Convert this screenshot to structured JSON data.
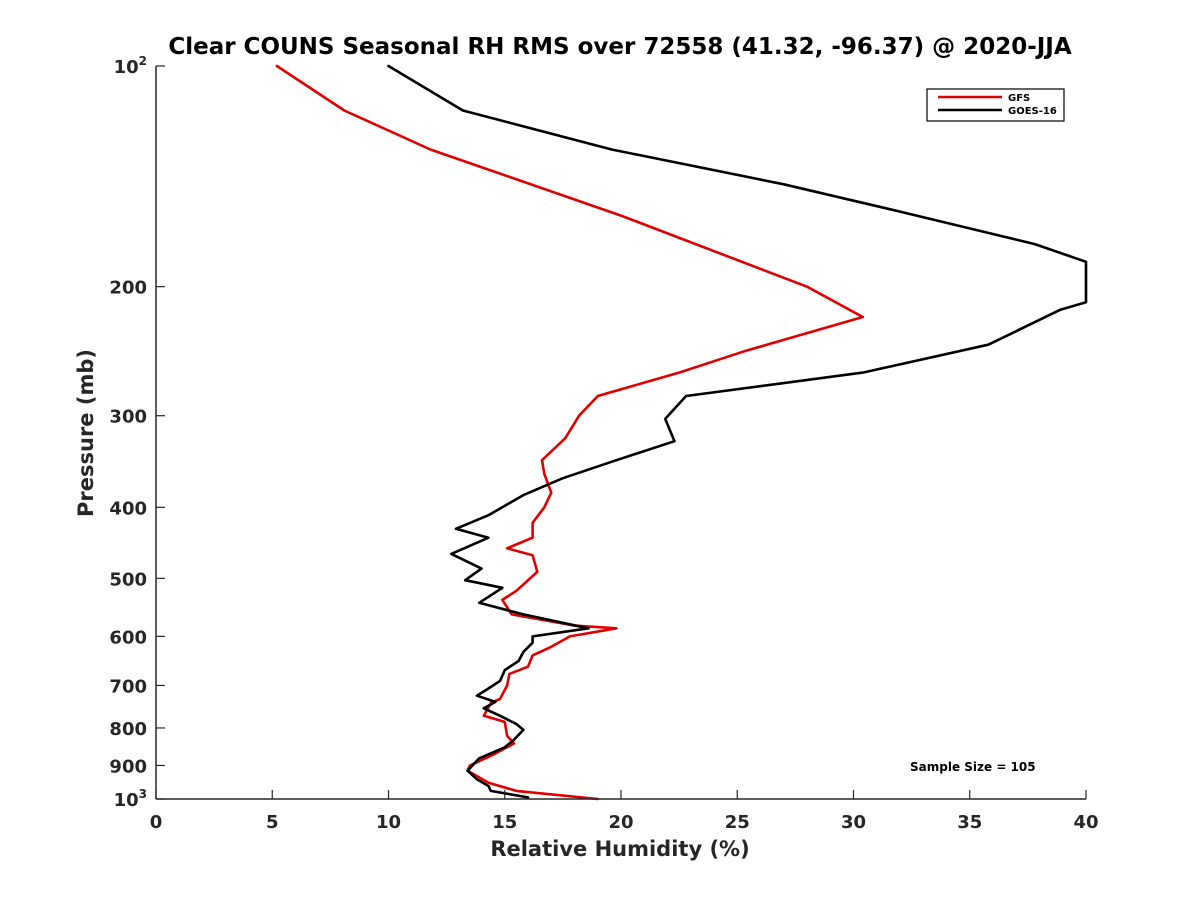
{
  "chart_data": {
    "type": "line",
    "title": "Clear COUNS Seasonal RH RMS over 72558 (41.32, -96.37) @ 2020-JJA",
    "xlabel": "Relative Humidity (%)",
    "ylabel": "Pressure (mb)",
    "xlim": [
      0,
      40
    ],
    "ylim": [
      100,
      1000
    ],
    "y_scale": "log",
    "y_reversed": true,
    "x_ticks": [
      0,
      5,
      10,
      15,
      20,
      25,
      30,
      35,
      40
    ],
    "y_ticks": [
      {
        "value": 100,
        "base": "10",
        "exp": "2"
      },
      {
        "value": 200,
        "label": "200"
      },
      {
        "value": 300,
        "label": "300"
      },
      {
        "value": 400,
        "label": "400"
      },
      {
        "value": 500,
        "label": "500"
      },
      {
        "value": 600,
        "label": "600"
      },
      {
        "value": 700,
        "label": "700"
      },
      {
        "value": 800,
        "label": "800"
      },
      {
        "value": 900,
        "label": "900"
      },
      {
        "value": 1000,
        "base": "10",
        "exp": "3"
      }
    ],
    "legend_position": "top-right",
    "annotation": "Sample Size = 105",
    "series": [
      {
        "name": "GFS",
        "color": "#e00000",
        "points": [
          [
            5.2,
            100
          ],
          [
            8.1,
            115
          ],
          [
            11.8,
            130
          ],
          [
            20,
            160
          ],
          [
            28,
            200
          ],
          [
            30.4,
            220
          ],
          [
            25.3,
            245
          ],
          [
            22.5,
            262
          ],
          [
            19.0,
            282
          ],
          [
            18.2,
            300
          ],
          [
            17.6,
            322
          ],
          [
            16.6,
            345
          ],
          [
            16.7,
            360
          ],
          [
            17.0,
            382
          ],
          [
            16.7,
            400
          ],
          [
            16.2,
            420
          ],
          [
            16.2,
            440
          ],
          [
            15.1,
            455
          ],
          [
            16.2,
            465
          ],
          [
            16.4,
            490
          ],
          [
            15.5,
            520
          ],
          [
            14.9,
            535
          ],
          [
            15.3,
            560
          ],
          [
            18.0,
            580
          ],
          [
            19.8,
            585
          ],
          [
            17.8,
            600
          ],
          [
            17.0,
            620
          ],
          [
            16.2,
            637
          ],
          [
            16.0,
            660
          ],
          [
            15.2,
            675
          ],
          [
            15.1,
            700
          ],
          [
            14.8,
            730
          ],
          [
            14.4,
            740
          ],
          [
            14.1,
            770
          ],
          [
            15.0,
            785
          ],
          [
            15.1,
            820
          ],
          [
            15.4,
            840
          ],
          [
            14.5,
            870
          ],
          [
            13.5,
            900
          ],
          [
            13.4,
            915
          ],
          [
            14.3,
            950
          ],
          [
            15.5,
            975
          ],
          [
            19.0,
            1000
          ]
        ]
      },
      {
        "name": "GOES-16",
        "color": "#000000",
        "points": [
          [
            10.0,
            100
          ],
          [
            13.2,
            115
          ],
          [
            19.6,
            130
          ],
          [
            27,
            145
          ],
          [
            32,
            158
          ],
          [
            37.8,
            175
          ],
          [
            40,
            185
          ],
          [
            40,
            210
          ],
          [
            38.9,
            215
          ],
          [
            35.8,
            240
          ],
          [
            30.4,
            262
          ],
          [
            22.8,
            282
          ],
          [
            21.9,
            303
          ],
          [
            22.3,
            325
          ],
          [
            19.8,
            345
          ],
          [
            17.5,
            365
          ],
          [
            15.8,
            385
          ],
          [
            14.3,
            410
          ],
          [
            12.9,
            428
          ],
          [
            14.3,
            440
          ],
          [
            12.7,
            463
          ],
          [
            14.0,
            485
          ],
          [
            13.3,
            503
          ],
          [
            14.9,
            515
          ],
          [
            13.9,
            540
          ],
          [
            15.8,
            560
          ],
          [
            18.6,
            585
          ],
          [
            16.2,
            600
          ],
          [
            16.2,
            612
          ],
          [
            15.8,
            630
          ],
          [
            15.6,
            648
          ],
          [
            15.0,
            667
          ],
          [
            14.8,
            690
          ],
          [
            14.2,
            710
          ],
          [
            13.8,
            723
          ],
          [
            14.6,
            737
          ],
          [
            14.1,
            752
          ],
          [
            14.8,
            770
          ],
          [
            15.5,
            790
          ],
          [
            15.8,
            805
          ],
          [
            15.4,
            830
          ],
          [
            15.0,
            850
          ],
          [
            13.9,
            880
          ],
          [
            13.4,
            915
          ],
          [
            13.8,
            940
          ],
          [
            14.3,
            960
          ],
          [
            14.4,
            975
          ],
          [
            16.0,
            995
          ]
        ]
      }
    ]
  }
}
